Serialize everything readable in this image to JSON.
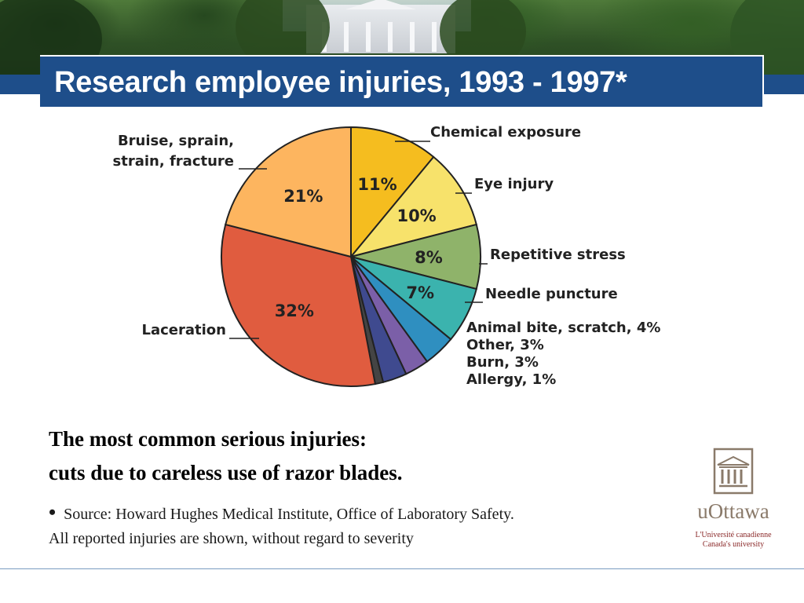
{
  "slide": {
    "title": "Research employee injuries, 1993 - 1997*",
    "caption_line1": "The most common serious injuries:",
    "caption_line2": "cuts due to careless use of razor blades.",
    "bullet": "•",
    "source": "Source: Howard Hughes Medical Institute, Office of Laboratory Safety.",
    "note": "All reported injuries are shown, without regard to severity"
  },
  "logo": {
    "name": "uOttawa",
    "tagline1": "L'Université canadienne",
    "tagline2": "Canada's university",
    "icon": "building-columns-icon"
  },
  "chart_data": {
    "type": "pie",
    "unit": "%",
    "slices": [
      {
        "label": "Chemical exposure",
        "value": 11,
        "value_label": "11%",
        "color": "#f5bd1f"
      },
      {
        "label": "Eye injury",
        "value": 10,
        "value_label": "10%",
        "color": "#f7e26b"
      },
      {
        "label": "Repetitive stress",
        "value": 8,
        "value_label": "8%",
        "color": "#8fb36a"
      },
      {
        "label": "Needle puncture",
        "value": 7,
        "value_label": "7%",
        "color": "#3bb3ae"
      },
      {
        "label": "Animal bite, scratch, 4%",
        "value": 4,
        "value_label": "",
        "color": "#2f8fc0"
      },
      {
        "label": "Other, 3%",
        "value": 3,
        "value_label": "",
        "color": "#7b5fa8"
      },
      {
        "label": "Burn, 3%",
        "value": 3,
        "value_label": "",
        "color": "#3f4a8f"
      },
      {
        "label": "Allergy, 1%",
        "value": 1,
        "value_label": "",
        "color": "#444444"
      },
      {
        "label": "Laceration",
        "value": 32,
        "value_label": "32%",
        "color": "#e05c3f"
      },
      {
        "label": "Bruise, sprain, strain, fracture",
        "value": 21,
        "value_label": "21%",
        "color": "#fdb55f"
      }
    ],
    "outer_labels": [
      {
        "lines": [
          "Chemical exposure"
        ],
        "slice": 0
      },
      {
        "lines": [
          "Eye injury"
        ],
        "slice": 1
      },
      {
        "lines": [
          "Repetitive stress"
        ],
        "slice": 2
      },
      {
        "lines": [
          "Needle puncture"
        ],
        "slice": 3
      },
      {
        "lines": [
          "Animal bite, scratch, 4%",
          "Other, 3%",
          "Burn, 3%",
          "Allergy, 1%"
        ],
        "slice": 4
      },
      {
        "lines": [
          "Laceration"
        ],
        "slice": 8
      },
      {
        "lines": [
          "Bruise, sprain,",
          "strain, fracture"
        ],
        "slice": 9
      }
    ]
  }
}
